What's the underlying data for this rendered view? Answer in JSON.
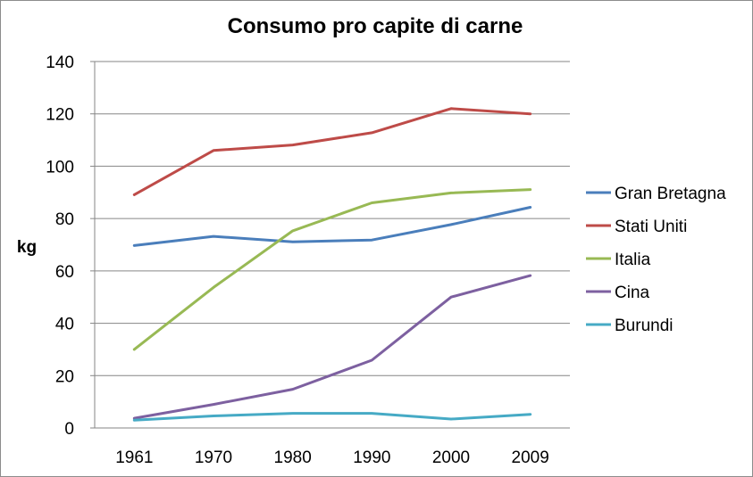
{
  "chart_data": {
    "type": "line",
    "title": "Consumo pro capite di carne",
    "xlabel": "",
    "ylabel": "kg",
    "categories": [
      "1961",
      "1970",
      "1980",
      "1990",
      "2000",
      "2009"
    ],
    "ylim": [
      0,
      140
    ],
    "yticks": [
      0,
      20,
      40,
      60,
      80,
      100,
      120,
      140
    ],
    "grid": true,
    "legend_position": "right",
    "series": [
      {
        "name": "Gran Bretagna",
        "color": "#4a7ebb",
        "values": [
          69.7,
          73.2,
          71.1,
          71.8,
          77.7,
          84.3
        ]
      },
      {
        "name": "Stati Uniti",
        "color": "#be4b48",
        "values": [
          89.1,
          106.0,
          108.1,
          112.8,
          122.0,
          120.0
        ]
      },
      {
        "name": "Italia",
        "color": "#98b954",
        "values": [
          30.0,
          53.7,
          75.3,
          86.0,
          89.8,
          91.1
        ]
      },
      {
        "name": "Cina",
        "color": "#7d60a0",
        "values": [
          3.7,
          9.0,
          14.8,
          25.9,
          50.0,
          58.2
        ]
      },
      {
        "name": "Burundi",
        "color": "#46aac5",
        "values": [
          3.0,
          4.6,
          5.6,
          5.6,
          3.4,
          5.2
        ]
      }
    ]
  }
}
